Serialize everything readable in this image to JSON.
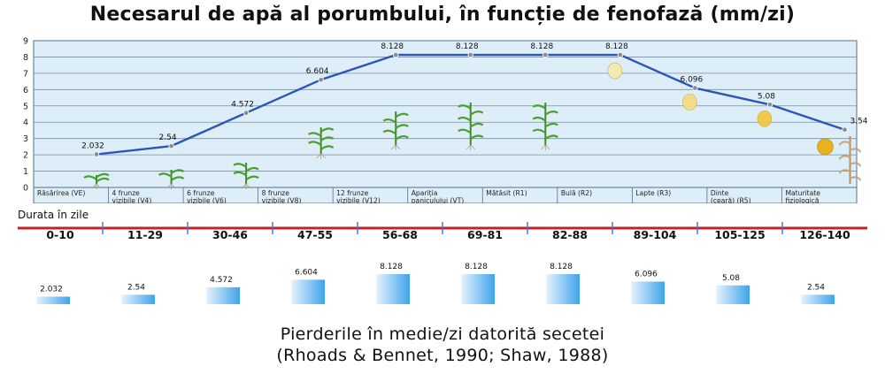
{
  "title": "Necesarul de apă al porumbului, în funcție de fenofază (mm/zi)",
  "chart_data": [
    {
      "type": "line",
      "title": "Necesarul de apă al porumbului, în funcție de fenofază (mm/zi)",
      "categories": [
        "Răsărirea (VE)",
        "4 frunze vizibile (V4)",
        "6 frunze vizibile (V6)",
        "8 frunze vizibile (V8)",
        "12 frunze vizibile (V12)",
        "Apariția paniculului (VT)",
        "Mătăsit (R1)",
        "Bulă (R2)",
        "Lapte (R3)",
        "Dinte (ceară) (R5)",
        "Maturitate fiziologică"
      ],
      "category_lines": [
        [
          "Răsărirea (VE)"
        ],
        [
          "4 frunze",
          "vizibile (V4)"
        ],
        [
          "6 frunze",
          "vizibile (V6)"
        ],
        [
          "8 frunze",
          "vizibile (V8)"
        ],
        [
          "12 frunze",
          "vizibile (V12)"
        ],
        [
          "Apariția",
          "paniculului (VT)"
        ],
        [
          "Mătăsit (R1)"
        ],
        [
          "Bulă (R2)"
        ],
        [
          "Lapte (R3)"
        ],
        [
          "Dinte",
          "(ceară) (R5)"
        ],
        [
          "Maturitate",
          "fiziologică"
        ]
      ],
      "values": [
        2.032,
        2.54,
        4.572,
        6.604,
        8.128,
        8.128,
        8.128,
        8.128,
        6.096,
        5.08,
        3.54
      ],
      "labels": [
        "2.032",
        "2.54",
        "4.572",
        "6.604",
        "8.128",
        "8.128",
        "8.128",
        "8.128",
        "6.096",
        "5.08",
        "3.54"
      ],
      "ylim": [
        0,
        9
      ],
      "yticks": [
        "0",
        "1",
        "2",
        "3",
        "4",
        "5",
        "6",
        "7",
        "8",
        "9"
      ],
      "grid": true,
      "colors": {
        "line": "#2d55b8",
        "background": "#ddeef8",
        "grid": "#7a8ea0",
        "point": "#8d8d8d"
      }
    },
    {
      "type": "bar",
      "title": "Pierderile în medie/zi datorită secetei",
      "categories": [
        "0-10",
        "11-29",
        "30-46",
        "47-55",
        "56-68",
        "69-81",
        "82-88",
        "89-104",
        "105-125",
        "126-140"
      ],
      "values": [
        2.032,
        2.54,
        4.572,
        6.604,
        8.128,
        8.128,
        8.128,
        6.096,
        5.08,
        2.54
      ],
      "labels": [
        "2.032",
        "2.54",
        "4.572",
        "6.604",
        "8.128",
        "8.128",
        "8.128",
        "6.096",
        "5.08",
        "2.54"
      ],
      "colors": {
        "bar_top": "#3ea3ea",
        "bar_bottom": "#e6f4fd"
      }
    }
  ],
  "duration_label": "Durata în zile",
  "ranges": [
    "0-10",
    "11-29",
    "30-46",
    "47-55",
    "56-68",
    "69-81",
    "82-88",
    "89-104",
    "105-125",
    "126-140"
  ],
  "caption": {
    "line1": "Pierderile în medie/zi datorită secetei",
    "line2": "(Rhoads & Bennet, 1990; Shaw, 1988)"
  },
  "colors": {
    "timeline": "#c0232a",
    "tick": "#3a7bd5"
  }
}
